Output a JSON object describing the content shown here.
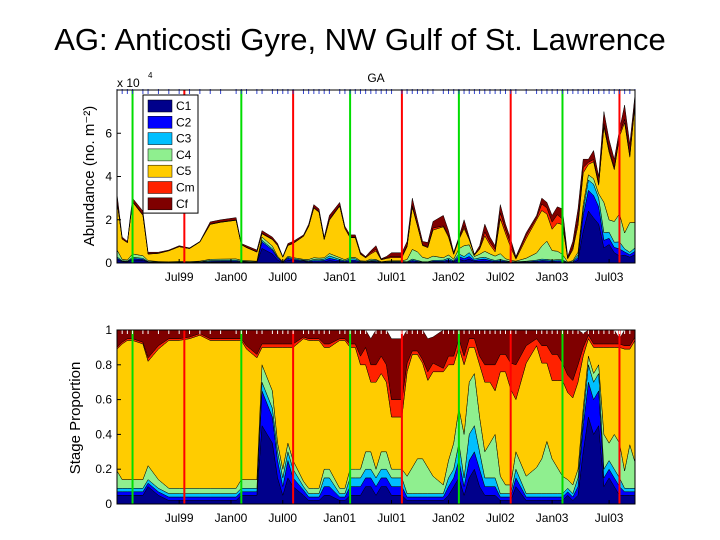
{
  "slide": {
    "title": "AG: Anticosti Gyre, NW Gulf of St. Lawrence"
  },
  "colors": {
    "C1": "#00008b",
    "C2": "#0000ff",
    "C3": "#00bfff",
    "C4": "#8fef8f",
    "C5": "#ffcc00",
    "Cm": "#ff2200",
    "Cf": "#7f0000",
    "green_line": "#00dd00",
    "red_line": "#ff0000",
    "sample_tick": "#3344cc"
  },
  "stages": [
    "C1",
    "C2",
    "C3",
    "C4",
    "C5",
    "Cm",
    "Cf"
  ],
  "chart_data": [
    {
      "type": "area",
      "stacked": true,
      "title": "GA",
      "ylabel": "Abundance (no. m⁻²)",
      "y_multiplier_label": "x 10",
      "y_multiplier_exp": "4",
      "ylim": [
        0,
        8
      ],
      "yticks": [
        0,
        2,
        4,
        6
      ],
      "xlim": [
        0,
        100
      ],
      "xtick_labels": [
        {
          "x": 12,
          "label": "Jul99"
        },
        {
          "x": 22,
          "label": "Jan00"
        },
        {
          "x": 32,
          "label": "Jul00"
        },
        {
          "x": 43,
          "label": "Jan01"
        },
        {
          "x": 53,
          "label": "Jul01"
        },
        {
          "x": 64,
          "label": "Jan02"
        },
        {
          "x": 74,
          "label": "Jul02"
        },
        {
          "x": 84,
          "label": "Jan03"
        },
        {
          "x": 95,
          "label": "Jul03"
        }
      ],
      "legend": {
        "placement": "top-left",
        "entries": [
          "C1",
          "C2",
          "C3",
          "C4",
          "C5",
          "Cm",
          "Cf"
        ]
      },
      "green_lines_x": [
        3,
        24,
        45,
        66,
        86
      ],
      "red_lines_x": [
        13,
        34,
        55,
        76,
        97
      ],
      "x": [
        0,
        1,
        2,
        3,
        5,
        6,
        8,
        10,
        12,
        14,
        16,
        18,
        20,
        23,
        24,
        25,
        27,
        28,
        30,
        31,
        32,
        33,
        34,
        36,
        37,
        38,
        39,
        40,
        41,
        43,
        44,
        45,
        46,
        47,
        48,
        49,
        50,
        51,
        52,
        53,
        55,
        56,
        57,
        58,
        59,
        60,
        61,
        63,
        64,
        65,
        66,
        67,
        68,
        69,
        70,
        71,
        72,
        73,
        74,
        75,
        76,
        77,
        79,
        81,
        82,
        83,
        84,
        85,
        86,
        87,
        88,
        89,
        90,
        91,
        92,
        93,
        94,
        95,
        96,
        97,
        98,
        99,
        100
      ],
      "total": [
        3.2,
        1.2,
        1.0,
        3.0,
        2.4,
        0.5,
        0.5,
        0.6,
        0.8,
        0.7,
        1.0,
        1.9,
        2.0,
        2.1,
        0.9,
        0.8,
        0.6,
        1.5,
        1.2,
        0.9,
        0.3,
        0.9,
        1.0,
        1.3,
        1.8,
        2.7,
        2.5,
        1.2,
        2.2,
        2.8,
        1.7,
        1.3,
        1.3,
        0.5,
        0.3,
        0.6,
        0.8,
        0.2,
        0.3,
        0.5,
        0.5,
        1.0,
        3.0,
        2.0,
        1.0,
        1.0,
        2.0,
        2.2,
        1.5,
        0.5,
        1.2,
        2.0,
        1.2,
        0.4,
        0.8,
        1.8,
        1.2,
        0.8,
        2.7,
        1.8,
        1.1,
        0.3,
        1.4,
        2.2,
        3.0,
        2.8,
        2.2,
        2.6,
        2.5,
        0.3,
        1.0,
        2.5,
        4.9,
        4.8,
        5.2,
        4.0,
        7.0,
        5.7,
        4.8,
        6.5,
        7.3,
        5.5,
        7.8
      ],
      "series": [
        {
          "name": "C1",
          "props": [
            0.05,
            0.05,
            0.05,
            0.05,
            0.05,
            0.1,
            0.05,
            0.02,
            0.02,
            0.02,
            0.02,
            0.02,
            0.02,
            0.02,
            0.05,
            0.05,
            0.05,
            0.45,
            0.35,
            0.15,
            0.05,
            0.15,
            0.1,
            0.05,
            0.02,
            0.02,
            0.02,
            0.05,
            0.05,
            0.02,
            0.02,
            0.05,
            0.05,
            0.05,
            0.1,
            0.1,
            0.05,
            0.1,
            0.1,
            0.05,
            0.05,
            0.02,
            0.02,
            0.02,
            0.02,
            0.02,
            0.02,
            0.02,
            0.05,
            0.1,
            0.15,
            0.05,
            0.15,
            0.2,
            0.1,
            0.05,
            0.05,
            0.05,
            0.02,
            0.02,
            0.02,
            0.1,
            0.02,
            0.02,
            0.02,
            0.02,
            0.02,
            0.02,
            0.02,
            0.05,
            0.02,
            0.05,
            0.3,
            0.5,
            0.4,
            0.45,
            0.1,
            0.15,
            0.1,
            0.05,
            0.05,
            0.05,
            0.05
          ]
        },
        {
          "name": "C2",
          "props": [
            0.02,
            0.02,
            0.02,
            0.02,
            0.02,
            0.02,
            0.02,
            0.02,
            0.02,
            0.02,
            0.02,
            0.02,
            0.02,
            0.02,
            0.02,
            0.02,
            0.02,
            0.2,
            0.15,
            0.1,
            0.05,
            0.1,
            0.05,
            0.03,
            0.02,
            0.02,
            0.02,
            0.05,
            0.05,
            0.02,
            0.02,
            0.05,
            0.05,
            0.05,
            0.05,
            0.05,
            0.05,
            0.05,
            0.05,
            0.05,
            0.05,
            0.02,
            0.02,
            0.02,
            0.02,
            0.02,
            0.02,
            0.02,
            0.05,
            0.05,
            0.1,
            0.05,
            0.1,
            0.1,
            0.1,
            0.05,
            0.05,
            0.05,
            0.02,
            0.02,
            0.02,
            0.05,
            0.02,
            0.02,
            0.02,
            0.02,
            0.02,
            0.02,
            0.02,
            0.02,
            0.02,
            0.05,
            0.15,
            0.2,
            0.2,
            0.2,
            0.05,
            0.05,
            0.05,
            0.05,
            0.02,
            0.02,
            0.02
          ]
        },
        {
          "name": "C3",
          "props": [
            0.02,
            0.02,
            0.02,
            0.02,
            0.02,
            0.02,
            0.02,
            0.02,
            0.02,
            0.02,
            0.02,
            0.02,
            0.02,
            0.02,
            0.02,
            0.02,
            0.02,
            0.05,
            0.05,
            0.05,
            0.05,
            0.05,
            0.05,
            0.02,
            0.02,
            0.02,
            0.02,
            0.05,
            0.05,
            0.02,
            0.02,
            0.05,
            0.05,
            0.05,
            0.05,
            0.05,
            0.05,
            0.05,
            0.05,
            0.05,
            0.05,
            0.02,
            0.02,
            0.02,
            0.02,
            0.02,
            0.02,
            0.02,
            0.05,
            0.05,
            0.1,
            0.05,
            0.15,
            0.15,
            0.1,
            0.05,
            0.05,
            0.05,
            0.02,
            0.02,
            0.02,
            0.05,
            0.02,
            0.02,
            0.02,
            0.02,
            0.02,
            0.02,
            0.02,
            0.02,
            0.02,
            0.05,
            0.05,
            0.1,
            0.1,
            0.1,
            0.05,
            0.05,
            0.05,
            0.05,
            0.02,
            0.02,
            0.02
          ]
        },
        {
          "name": "C4",
          "props": [
            0.1,
            0.05,
            0.05,
            0.05,
            0.05,
            0.08,
            0.05,
            0.03,
            0.03,
            0.03,
            0.03,
            0.03,
            0.03,
            0.03,
            0.05,
            0.05,
            0.05,
            0.1,
            0.1,
            0.05,
            0.05,
            0.05,
            0.05,
            0.03,
            0.03,
            0.03,
            0.03,
            0.05,
            0.05,
            0.03,
            0.03,
            0.05,
            0.05,
            0.05,
            0.1,
            0.1,
            0.05,
            0.1,
            0.1,
            0.05,
            0.05,
            0.1,
            0.15,
            0.2,
            0.2,
            0.15,
            0.1,
            0.05,
            0.1,
            0.15,
            0.2,
            0.25,
            0.3,
            0.3,
            0.2,
            0.15,
            0.2,
            0.25,
            0.1,
            0.05,
            0.05,
            0.1,
            0.1,
            0.15,
            0.2,
            0.3,
            0.2,
            0.15,
            0.1,
            0.05,
            0.05,
            0.05,
            0.05,
            0.05,
            0.05,
            0.05,
            0.2,
            0.1,
            0.2,
            0.2,
            0.1,
            0.25,
            0.15
          ]
        },
        {
          "name": "C5",
          "props": [
            0.7,
            0.78,
            0.8,
            0.8,
            0.78,
            0.6,
            0.75,
            0.85,
            0.85,
            0.86,
            0.88,
            0.85,
            0.85,
            0.85,
            0.8,
            0.75,
            0.7,
            0.1,
            0.25,
            0.55,
            0.7,
            0.55,
            0.65,
            0.82,
            0.85,
            0.85,
            0.85,
            0.7,
            0.7,
            0.85,
            0.85,
            0.7,
            0.7,
            0.6,
            0.5,
            0.4,
            0.5,
            0.45,
            0.4,
            0.3,
            0.3,
            0.6,
            0.65,
            0.6,
            0.55,
            0.5,
            0.6,
            0.65,
            0.55,
            0.45,
            0.35,
            0.4,
            0.2,
            0.15,
            0.3,
            0.4,
            0.35,
            0.25,
            0.6,
            0.65,
            0.55,
            0.3,
            0.65,
            0.7,
            0.55,
            0.45,
            0.45,
            0.5,
            0.55,
            0.5,
            0.5,
            0.5,
            0.3,
            0.1,
            0.15,
            0.1,
            0.5,
            0.55,
            0.5,
            0.55,
            0.7,
            0.55,
            0.7
          ]
        },
        {
          "name": "Cm",
          "props": [
            0.01,
            0.01,
            0.01,
            0.01,
            0.01,
            0.02,
            0.02,
            0.01,
            0.01,
            0.01,
            0.01,
            0.01,
            0.01,
            0.01,
            0.01,
            0.02,
            0.02,
            0.02,
            0.02,
            0.02,
            0.02,
            0.02,
            0.02,
            0.01,
            0.01,
            0.01,
            0.01,
            0.02,
            0.02,
            0.01,
            0.01,
            0.02,
            0.02,
            0.05,
            0.1,
            0.1,
            0.1,
            0.1,
            0.1,
            0.1,
            0.1,
            0.05,
            0.02,
            0.02,
            0.02,
            0.05,
            0.05,
            0.02,
            0.05,
            0.05,
            0.05,
            0.05,
            0.05,
            0.05,
            0.05,
            0.1,
            0.1,
            0.15,
            0.1,
            0.1,
            0.15,
            0.2,
            0.1,
            0.04,
            0.1,
            0.1,
            0.15,
            0.15,
            0.1,
            0.1,
            0.1,
            0.1,
            0.05,
            0.02,
            0.02,
            0.02,
            0.02,
            0.02,
            0.02,
            0.02,
            0.02,
            0.02,
            0.02
          ]
        },
        {
          "name": "Cf",
          "props": [
            0.1,
            0.07,
            0.05,
            0.05,
            0.07,
            0.16,
            0.09,
            0.05,
            0.05,
            0.04,
            0.02,
            0.05,
            0.05,
            0.05,
            0.05,
            0.09,
            0.14,
            0.08,
            0.08,
            0.08,
            0.08,
            0.08,
            0.08,
            0.04,
            0.05,
            0.05,
            0.05,
            0.08,
            0.08,
            0.05,
            0.05,
            0.08,
            0.08,
            0.15,
            0.1,
            0.15,
            0.2,
            0.15,
            0.2,
            0.35,
            0.35,
            0.19,
            0.12,
            0.12,
            0.17,
            0.19,
            0.15,
            0.22,
            0.15,
            0.15,
            0.05,
            0.15,
            0.05,
            0.05,
            0.15,
            0.2,
            0.2,
            0.2,
            0.14,
            0.14,
            0.19,
            0.2,
            0.09,
            0.05,
            0.09,
            0.09,
            0.14,
            0.14,
            0.19,
            0.26,
            0.29,
            0.2,
            0.08,
            0.03,
            0.08,
            0.08,
            0.08,
            0.08,
            0.08,
            0.03,
            0.09,
            0.09,
            0.04
          ]
        }
      ]
    },
    {
      "type": "area",
      "stacked": true,
      "normalized": true,
      "ylabel": "Stage Proportion",
      "ylim": [
        0,
        1
      ],
      "yticks": [
        0,
        0.2,
        0.4,
        0.6,
        0.8,
        1
      ],
      "xlim": [
        0,
        100
      ],
      "xtick_labels": [
        {
          "x": 12,
          "label": "Jul99"
        },
        {
          "x": 22,
          "label": "Jan00"
        },
        {
          "x": 32,
          "label": "Jul00"
        },
        {
          "x": 43,
          "label": "Jan01"
        },
        {
          "x": 53,
          "label": "Jul01"
        },
        {
          "x": 64,
          "label": "Jan02"
        },
        {
          "x": 74,
          "label": "Jul02"
        },
        {
          "x": 84,
          "label": "Jan03"
        },
        {
          "x": 95,
          "label": "Jul03"
        }
      ],
      "green_lines_x": [
        3,
        24,
        45,
        66,
        86
      ],
      "red_lines_x": [
        13,
        34,
        55,
        76,
        97
      ],
      "note_series": "uses the same stage proportions as the abundance panel"
    }
  ]
}
